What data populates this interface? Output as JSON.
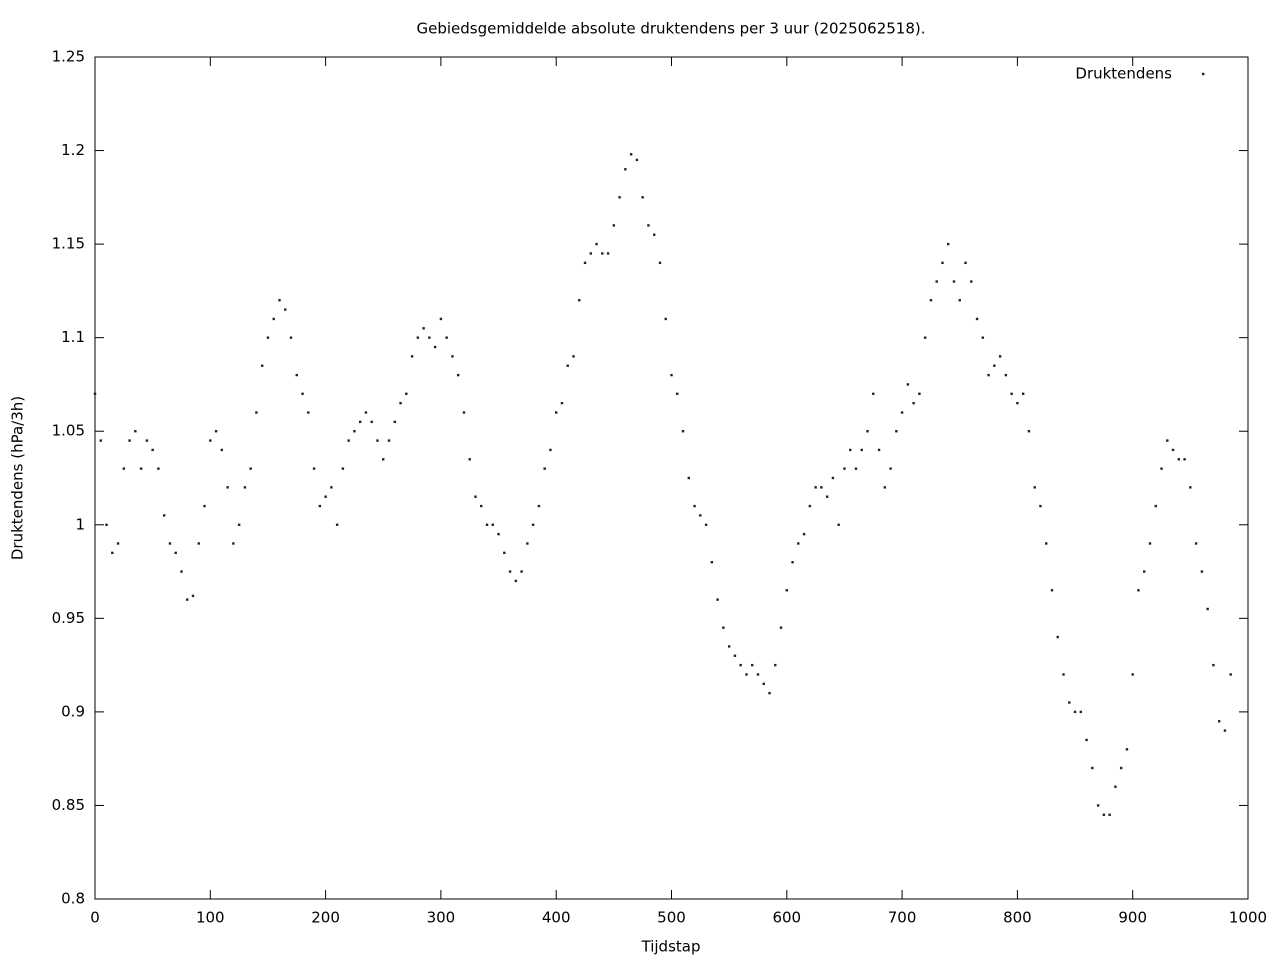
{
  "chart_data": {
    "type": "scatter",
    "title": "Gebiedsgemiddelde absolute druktendens per 3 uur (2025062518).",
    "x_label": "Tijdstap",
    "y_label": "Druktendens (hPa/3h)",
    "xlim": [
      0,
      1000
    ],
    "ylim": [
      0.8,
      1.25
    ],
    "xticks": [
      0,
      100,
      200,
      300,
      400,
      500,
      600,
      700,
      800,
      900,
      1000
    ],
    "yticks": [
      0.8,
      0.85,
      0.9,
      0.95,
      1,
      1.05,
      1.1,
      1.15,
      1.2,
      1.25
    ],
    "legend": "top-right",
    "series": [
      {
        "name": "Druktendens",
        "color": "#222222",
        "x": [
          0,
          5,
          10,
          15,
          20,
          25,
          30,
          35,
          40,
          45,
          50,
          55,
          60,
          65,
          70,
          75,
          80,
          85,
          90,
          95,
          100,
          105,
          110,
          115,
          120,
          125,
          130,
          135,
          140,
          145,
          150,
          155,
          160,
          165,
          170,
          175,
          180,
          185,
          190,
          195,
          200,
          205,
          210,
          215,
          220,
          225,
          230,
          235,
          240,
          245,
          250,
          255,
          260,
          265,
          270,
          275,
          280,
          285,
          290,
          295,
          300,
          305,
          310,
          315,
          320,
          325,
          330,
          335,
          340,
          345,
          350,
          355,
          360,
          365,
          370,
          375,
          380,
          385,
          390,
          395,
          400,
          405,
          410,
          415,
          420,
          425,
          430,
          435,
          440,
          445,
          450,
          455,
          460,
          465,
          470,
          475,
          480,
          485,
          490,
          495,
          500,
          505,
          510,
          515,
          520,
          525,
          530,
          535,
          540,
          545,
          550,
          555,
          560,
          565,
          570,
          575,
          580,
          585,
          590,
          595,
          600,
          605,
          610,
          615,
          620,
          625,
          630,
          635,
          640,
          645,
          650,
          655,
          660,
          665,
          670,
          675,
          680,
          685,
          690,
          695,
          700,
          705,
          710,
          715,
          720,
          725,
          730,
          735,
          740,
          745,
          750,
          755,
          760,
          765,
          770,
          775,
          780,
          785,
          790,
          795,
          800,
          805,
          810,
          815,
          820,
          825,
          830,
          835,
          840,
          845,
          850,
          855,
          860,
          865,
          870,
          875,
          880,
          885,
          890,
          895,
          900,
          905,
          910,
          915,
          920,
          925,
          930,
          935,
          940,
          945,
          950,
          955,
          960,
          965,
          970,
          975,
          980,
          985
        ],
        "values": [
          1.07,
          1.045,
          1.0,
          0.985,
          0.99,
          1.03,
          1.045,
          1.05,
          1.03,
          1.045,
          1.04,
          1.03,
          1.005,
          0.99,
          0.985,
          0.975,
          0.96,
          0.962,
          0.99,
          1.01,
          1.045,
          1.05,
          1.04,
          1.02,
          0.99,
          1.0,
          1.02,
          1.03,
          1.06,
          1.085,
          1.1,
          1.11,
          1.12,
          1.115,
          1.1,
          1.08,
          1.07,
          1.06,
          1.03,
          1.01,
          1.015,
          1.02,
          1.0,
          1.03,
          1.045,
          1.05,
          1.055,
          1.06,
          1.055,
          1.045,
          1.035,
          1.045,
          1.055,
          1.065,
          1.07,
          1.09,
          1.1,
          1.105,
          1.1,
          1.095,
          1.11,
          1.1,
          1.09,
          1.08,
          1.06,
          1.035,
          1.015,
          1.01,
          1.0,
          1.0,
          0.995,
          0.985,
          0.975,
          0.97,
          0.975,
          0.99,
          1.0,
          1.01,
          1.03,
          1.04,
          1.06,
          1.065,
          1.085,
          1.09,
          1.12,
          1.14,
          1.145,
          1.15,
          1.145,
          1.145,
          1.16,
          1.175,
          1.19,
          1.198,
          1.195,
          1.175,
          1.16,
          1.155,
          1.14,
          1.11,
          1.08,
          1.07,
          1.05,
          1.025,
          1.01,
          1.005,
          1.0,
          0.98,
          0.96,
          0.945,
          0.935,
          0.93,
          0.925,
          0.92,
          0.925,
          0.92,
          0.915,
          0.91,
          0.925,
          0.945,
          0.965,
          0.98,
          0.99,
          0.995,
          1.01,
          1.02,
          1.02,
          1.015,
          1.025,
          1.0,
          1.03,
          1.04,
          1.03,
          1.04,
          1.05,
          1.07,
          1.04,
          1.02,
          1.03,
          1.05,
          1.06,
          1.075,
          1.065,
          1.07,
          1.1,
          1.12,
          1.13,
          1.14,
          1.15,
          1.13,
          1.12,
          1.14,
          1.13,
          1.11,
          1.1,
          1.08,
          1.085,
          1.09,
          1.08,
          1.07,
          1.065,
          1.07,
          1.05,
          1.02,
          1.01,
          0.99,
          0.965,
          0.94,
          0.92,
          0.905,
          0.9,
          0.9,
          0.885,
          0.87,
          0.85,
          0.845,
          0.845,
          0.86,
          0.87,
          0.88,
          0.92,
          0.965,
          0.975,
          0.99,
          1.01,
          1.03,
          1.045,
          1.04,
          1.035,
          1.035,
          1.02,
          0.99,
          0.975,
          0.955,
          0.925,
          0.895,
          0.89,
          0.92
        ]
      }
    ]
  }
}
